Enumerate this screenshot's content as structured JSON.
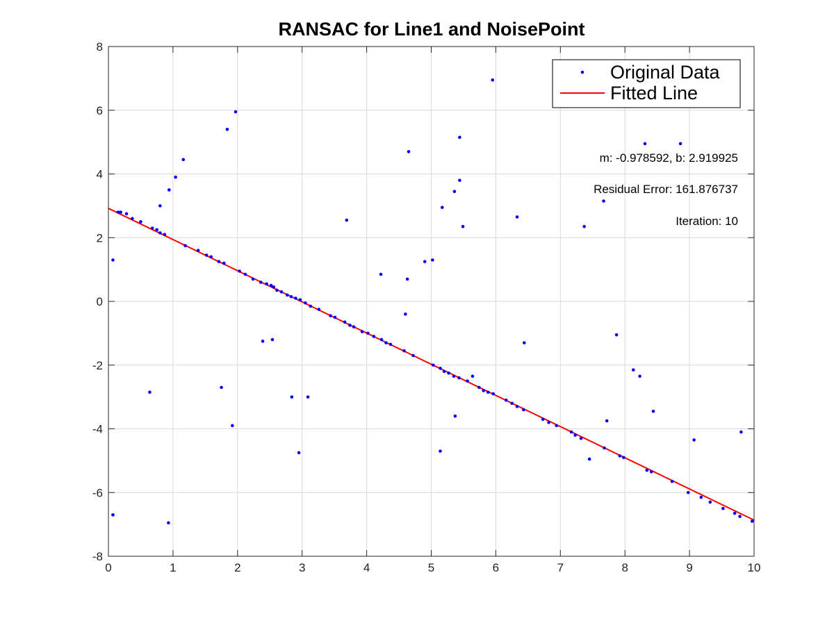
{
  "chart_data": {
    "type": "scatter",
    "title": "RANSAC for Line1 and NoisePoint",
    "xlabel": "",
    "ylabel": "",
    "xlim": [
      0,
      10
    ],
    "ylim": [
      -8,
      8
    ],
    "x_ticks": [
      "0",
      "1",
      "2",
      "3",
      "4",
      "5",
      "6",
      "7",
      "8",
      "9",
      "10"
    ],
    "y_ticks": [
      "8",
      "6",
      "4",
      "2",
      "0",
      "-2",
      "-4",
      "-6",
      "-8"
    ],
    "grid": true,
    "legend_position": "top-right",
    "annotations": [
      "m: -0.978592, b: 2.919925",
      "Residual Error: 161.876737",
      "Iteration: 10"
    ],
    "colors": {
      "points": "#0000ff",
      "line": "#ff0000",
      "grid": "#d9d9d9",
      "axes": "#262626"
    },
    "series": [
      {
        "name": "Original Data",
        "kind": "points",
        "x": [
          0.07,
          0.15,
          0.19,
          0.28,
          0.37,
          0.5,
          0.68,
          0.75,
          0.8,
          0.87,
          1.19,
          1.39,
          1.52,
          1.59,
          1.71,
          1.79,
          2.03,
          2.12,
          2.24,
          2.36,
          2.45,
          2.52,
          2.56,
          2.61,
          2.68,
          2.77,
          2.83,
          2.9,
          2.97,
          3.05,
          3.13,
          3.26,
          3.44,
          3.51,
          3.66,
          3.74,
          3.8,
          3.93,
          4.02,
          4.11,
          4.23,
          4.3,
          4.37,
          4.58,
          4.72,
          5.03,
          5.14,
          5.2,
          5.27,
          5.35,
          5.43,
          5.56,
          5.74,
          5.81,
          5.88,
          5.96,
          6.16,
          6.25,
          6.33,
          6.43,
          6.73,
          6.82,
          6.94,
          7.17,
          7.23,
          7.32,
          7.68,
          7.92,
          7.98,
          8.34,
          8.41,
          8.73,
          8.98,
          9.18,
          9.32,
          9.52,
          9.7,
          9.78,
          9.97,
          0.07,
          0.07,
          0.64,
          0.8,
          0.93,
          0.94,
          1.04,
          1.16,
          1.75,
          1.84,
          1.92,
          1.97,
          2.39,
          2.54,
          2.84,
          2.95,
          3.09,
          3.69,
          4.22,
          4.6,
          4.63,
          4.65,
          4.9,
          5.02,
          5.14,
          5.17,
          5.36,
          5.37,
          5.44,
          5.44,
          5.49,
          5.95,
          6.33,
          6.44,
          7.37,
          7.45,
          7.67,
          7.72,
          7.87,
          8.13,
          8.23,
          8.44,
          8.31,
          8.86,
          9.07,
          9.8,
          5.64
        ],
        "y": [
          -6.7,
          2.8,
          2.8,
          2.75,
          2.6,
          2.5,
          2.3,
          2.25,
          2.15,
          2.1,
          1.75,
          1.6,
          1.45,
          1.4,
          1.25,
          1.2,
          0.95,
          0.85,
          0.7,
          0.6,
          0.55,
          0.5,
          0.45,
          0.35,
          0.3,
          0.2,
          0.15,
          0.1,
          0.05,
          -0.05,
          -0.15,
          -0.25,
          -0.45,
          -0.5,
          -0.65,
          -0.75,
          -0.8,
          -0.95,
          -1.0,
          -1.1,
          -1.2,
          -1.3,
          -1.35,
          -1.55,
          -1.7,
          -2.0,
          -2.1,
          -2.2,
          -2.25,
          -2.35,
          -2.4,
          -2.5,
          -2.7,
          -2.8,
          -2.85,
          -2.9,
          -3.1,
          -3.2,
          -3.3,
          -3.4,
          -3.7,
          -3.8,
          -3.9,
          -4.1,
          -4.2,
          -4.3,
          -4.6,
          -4.85,
          -4.9,
          -5.3,
          -5.35,
          -5.65,
          -6.0,
          -6.15,
          -6.3,
          -6.5,
          -6.65,
          -6.75,
          -6.9,
          1.3,
          -6.7,
          -2.85,
          3.0,
          -6.95,
          3.5,
          3.9,
          4.45,
          -2.7,
          5.4,
          -3.9,
          5.95,
          -1.25,
          -1.2,
          -3.0,
          -4.75,
          -3.0,
          2.55,
          0.85,
          -0.4,
          0.7,
          4.7,
          1.25,
          1.3,
          -4.7,
          2.95,
          3.45,
          -3.6,
          3.8,
          5.15,
          2.35,
          6.95,
          2.65,
          -1.3,
          2.35,
          -4.95,
          3.15,
          -3.75,
          -1.05,
          -2.15,
          -2.35,
          -3.45,
          4.95,
          4.95,
          -4.35,
          -4.1,
          -2.35
        ]
      },
      {
        "name": "Fitted Line",
        "kind": "line",
        "m": -0.978592,
        "b": 2.919925,
        "x": [
          0,
          10
        ],
        "y": [
          2.919925,
          -6.865995
        ]
      }
    ]
  }
}
